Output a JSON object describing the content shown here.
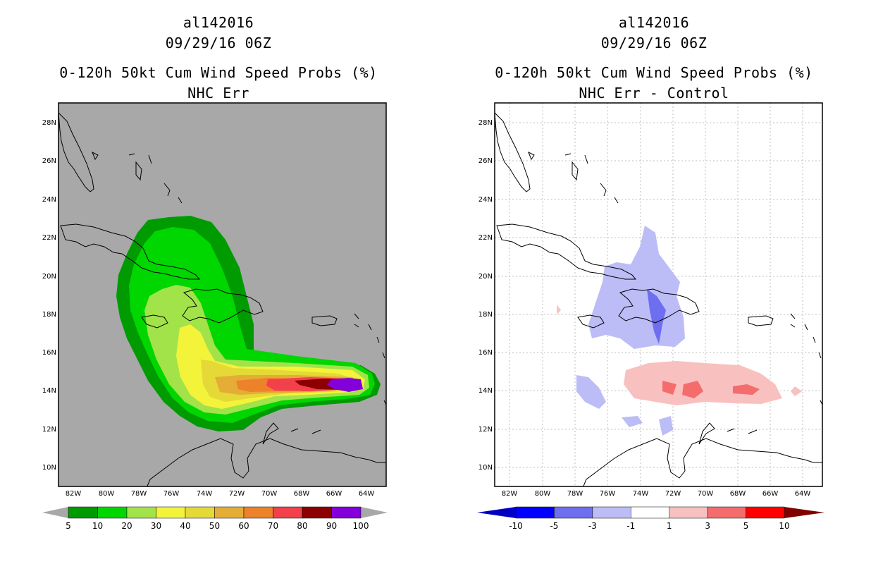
{
  "left_panel": {
    "title_line1": "al142016",
    "title_line2": "09/29/16 06Z",
    "subtitle_line1": "0-120h 50kt Cum Wind Speed Probs (%)",
    "subtitle_line2": "NHC Err",
    "colorbar_labels": [
      "5",
      "10",
      "20",
      "30",
      "40",
      "50",
      "60",
      "70",
      "80",
      "90",
      "100"
    ],
    "colorbar_colors": [
      "#009b00",
      "#00d600",
      "#a2e34a",
      "#f3f33a",
      "#e4d937",
      "#e4ad36",
      "#ee822a",
      "#f2414a",
      "#8c0000",
      "#8300da"
    ],
    "background": "#a8a8a8"
  },
  "right_panel": {
    "title_line1": "al142016",
    "title_line2": "09/29/16 06Z",
    "subtitle_line1": "0-120h 50kt Cum Wind Speed Probs (%)",
    "subtitle_line2": "NHC Err - Control",
    "colorbar_labels": [
      "-10",
      "-5",
      "-3",
      "-1",
      "1",
      "3",
      "5",
      "10"
    ],
    "colorbar_colors": [
      "#0000c4",
      "#0000ff",
      "#6e6ef0",
      "#bcbcf7",
      "#ffffff",
      "#f9c0c0",
      "#f56c6c",
      "#ff0000",
      "#8c0000"
    ],
    "extend_low_color": "#0000c4",
    "extend_high_color": "#800000"
  },
  "axes": {
    "lat_labels": [
      "28N",
      "26N",
      "24N",
      "22N",
      "20N",
      "18N",
      "16N",
      "14N",
      "12N",
      "10N"
    ],
    "lon_labels": [
      "82W",
      "80W",
      "78W",
      "76W",
      "74W",
      "72W",
      "70W",
      "68W",
      "66W",
      "64W"
    ]
  }
}
